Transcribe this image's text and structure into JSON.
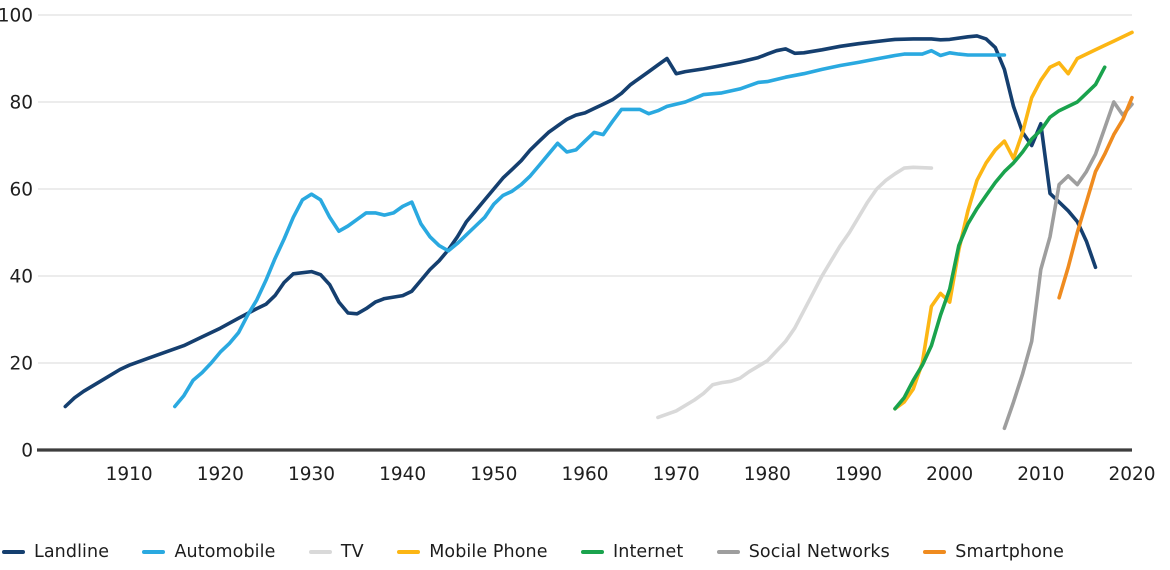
{
  "chart_data": {
    "type": "line",
    "title": "",
    "xlabel": "",
    "ylabel": "",
    "xlim": [
      1900,
      2020
    ],
    "ylim": [
      0,
      100
    ],
    "x_ticks": [
      1910,
      1920,
      1930,
      1940,
      1950,
      1960,
      1970,
      1980,
      1990,
      2000,
      2010,
      2020
    ],
    "y_ticks": [
      0,
      20,
      40,
      60,
      80,
      100
    ],
    "grid": true,
    "legend_position": "bottom",
    "colors": {
      "grid": "#e6e6e6",
      "axis": "#3d3d3d",
      "tick_text": "#1f1f1f"
    },
    "series": [
      {
        "name": "Landline",
        "color": "#153f6f",
        "points": [
          [
            1903,
            10
          ],
          [
            1904,
            12
          ],
          [
            1905,
            13.5
          ],
          [
            1907,
            16
          ],
          [
            1909,
            18.5
          ],
          [
            1910,
            19.5
          ],
          [
            1912,
            21
          ],
          [
            1914,
            22.5
          ],
          [
            1916,
            24
          ],
          [
            1918,
            26
          ],
          [
            1920,
            28
          ],
          [
            1922,
            30.3
          ],
          [
            1924,
            32.5
          ],
          [
            1925,
            33.5
          ],
          [
            1926,
            35.5
          ],
          [
            1927,
            38.5
          ],
          [
            1928,
            40.5
          ],
          [
            1930,
            41
          ],
          [
            1931,
            40.3
          ],
          [
            1932,
            38
          ],
          [
            1933,
            34
          ],
          [
            1934,
            31.5
          ],
          [
            1935,
            31.3
          ],
          [
            1936,
            32.5
          ],
          [
            1937,
            34
          ],
          [
            1938,
            34.8
          ],
          [
            1940,
            35.5
          ],
          [
            1941,
            36.5
          ],
          [
            1942,
            39
          ],
          [
            1943,
            41.5
          ],
          [
            1944,
            43.5
          ],
          [
            1945,
            46
          ],
          [
            1946,
            49
          ],
          [
            1947,
            52.5
          ],
          [
            1948,
            55
          ],
          [
            1949,
            57.5
          ],
          [
            1950,
            60
          ],
          [
            1951,
            62.5
          ],
          [
            1952,
            64.5
          ],
          [
            1953,
            66.5
          ],
          [
            1954,
            69
          ],
          [
            1955,
            71
          ],
          [
            1956,
            73
          ],
          [
            1957,
            74.5
          ],
          [
            1958,
            76
          ],
          [
            1959,
            77
          ],
          [
            1960,
            77.5
          ],
          [
            1961,
            78.5
          ],
          [
            1962,
            79.5
          ],
          [
            1963,
            80.5
          ],
          [
            1964,
            82
          ],
          [
            1965,
            84
          ],
          [
            1966,
            85.5
          ],
          [
            1967,
            87
          ],
          [
            1968,
            88.5
          ],
          [
            1969,
            90
          ],
          [
            1970,
            86.5
          ],
          [
            1971,
            87
          ],
          [
            1973,
            87.6
          ],
          [
            1975,
            88.4
          ],
          [
            1977,
            89.2
          ],
          [
            1979,
            90.2
          ],
          [
            1980,
            91
          ],
          [
            1981,
            91.8
          ],
          [
            1982,
            92.2
          ],
          [
            1983,
            91.2
          ],
          [
            1984,
            91.3
          ],
          [
            1986,
            92
          ],
          [
            1988,
            92.8
          ],
          [
            1990,
            93.4
          ],
          [
            1992,
            93.9
          ],
          [
            1994,
            94.4
          ],
          [
            1996,
            94.5
          ],
          [
            1998,
            94.5
          ],
          [
            1999,
            94.3
          ],
          [
            2000,
            94.4
          ],
          [
            2002,
            95
          ],
          [
            2003,
            95.2
          ],
          [
            2004,
            94.5
          ],
          [
            2005,
            92.5
          ],
          [
            2006,
            87.5
          ],
          [
            2007,
            79
          ],
          [
            2008,
            73
          ],
          [
            2009,
            70
          ],
          [
            2010,
            75
          ],
          [
            2011,
            59
          ],
          [
            2012,
            57
          ],
          [
            2013,
            55
          ],
          [
            2014,
            52.5
          ],
          [
            2015,
            48
          ],
          [
            2016,
            42
          ]
        ]
      },
      {
        "name": "Automobile",
        "color": "#2aa9e0",
        "points": [
          [
            1915,
            10
          ],
          [
            1916,
            12.5
          ],
          [
            1917,
            16
          ],
          [
            1918,
            17.8
          ],
          [
            1919,
            20
          ],
          [
            1920,
            22.5
          ],
          [
            1921,
            24.5
          ],
          [
            1922,
            27
          ],
          [
            1923,
            31
          ],
          [
            1924,
            34.5
          ],
          [
            1925,
            39
          ],
          [
            1926,
            44
          ],
          [
            1927,
            48.5
          ],
          [
            1928,
            53.5
          ],
          [
            1929,
            57.5
          ],
          [
            1930,
            58.8
          ],
          [
            1931,
            57.5
          ],
          [
            1932,
            53.5
          ],
          [
            1933,
            50.3
          ],
          [
            1934,
            51.5
          ],
          [
            1935,
            53
          ],
          [
            1936,
            54.5
          ],
          [
            1937,
            54.5
          ],
          [
            1938,
            54
          ],
          [
            1939,
            54.5
          ],
          [
            1940,
            56
          ],
          [
            1941,
            57
          ],
          [
            1942,
            52
          ],
          [
            1943,
            49
          ],
          [
            1944,
            47
          ],
          [
            1945,
            45.8
          ],
          [
            1946,
            47.5
          ],
          [
            1947,
            49.5
          ],
          [
            1948,
            51.5
          ],
          [
            1949,
            53.5
          ],
          [
            1950,
            56.5
          ],
          [
            1951,
            58.5
          ],
          [
            1952,
            59.5
          ],
          [
            1953,
            61
          ],
          [
            1954,
            63
          ],
          [
            1955,
            65.5
          ],
          [
            1956,
            68
          ],
          [
            1957,
            70.5
          ],
          [
            1958,
            68.5
          ],
          [
            1959,
            69
          ],
          [
            1960,
            71
          ],
          [
            1961,
            73
          ],
          [
            1962,
            72.5
          ],
          [
            1963,
            75.5
          ],
          [
            1964,
            78.3
          ],
          [
            1966,
            78.3
          ],
          [
            1967,
            77.3
          ],
          [
            1968,
            78
          ],
          [
            1969,
            79
          ],
          [
            1971,
            80
          ],
          [
            1973,
            81.7
          ],
          [
            1975,
            82.1
          ],
          [
            1977,
            83
          ],
          [
            1979,
            84.5
          ],
          [
            1980,
            84.7
          ],
          [
            1982,
            85.7
          ],
          [
            1984,
            86.5
          ],
          [
            1986,
            87.5
          ],
          [
            1988,
            88.4
          ],
          [
            1990,
            89.1
          ],
          [
            1992,
            89.9
          ],
          [
            1994,
            90.7
          ],
          [
            1995,
            91
          ],
          [
            1997,
            91
          ],
          [
            1998,
            91.8
          ],
          [
            1999,
            90.7
          ],
          [
            2000,
            91.3
          ],
          [
            2001,
            91
          ],
          [
            2002,
            90.8
          ],
          [
            2006,
            90.8
          ]
        ]
      },
      {
        "name": "TV",
        "color": "#d9d9d9",
        "points": [
          [
            1968,
            7.5
          ],
          [
            1970,
            9
          ],
          [
            1972,
            11.5
          ],
          [
            1973,
            13
          ],
          [
            1974,
            15
          ],
          [
            1975,
            15.5
          ],
          [
            1976,
            15.8
          ],
          [
            1977,
            16.5
          ],
          [
            1978,
            18
          ],
          [
            1980,
            20.5
          ],
          [
            1982,
            25
          ],
          [
            1983,
            28
          ],
          [
            1984,
            32
          ],
          [
            1985,
            36
          ],
          [
            1986,
            40
          ],
          [
            1987,
            43.5
          ],
          [
            1988,
            47
          ],
          [
            1989,
            50
          ],
          [
            1990,
            53.5
          ],
          [
            1991,
            57
          ],
          [
            1992,
            60
          ],
          [
            1993,
            62
          ],
          [
            1994,
            63.5
          ],
          [
            1995,
            64.8
          ],
          [
            1996,
            65
          ],
          [
            1998,
            64.8
          ]
        ]
      },
      {
        "name": "Mobile Phone",
        "color": "#fcb614",
        "points": [
          [
            1994,
            9.5
          ],
          [
            1995,
            11
          ],
          [
            1996,
            14
          ],
          [
            1997,
            20
          ],
          [
            1998,
            33
          ],
          [
            1999,
            36
          ],
          [
            2000,
            34
          ],
          [
            2001,
            46
          ],
          [
            2002,
            55
          ],
          [
            2003,
            62
          ],
          [
            2004,
            66
          ],
          [
            2005,
            69
          ],
          [
            2006,
            71
          ],
          [
            2007,
            67
          ],
          [
            2008,
            73
          ],
          [
            2009,
            81
          ],
          [
            2010,
            85
          ],
          [
            2011,
            88
          ],
          [
            2012,
            89
          ],
          [
            2013,
            86.5
          ],
          [
            2014,
            90
          ],
          [
            2015,
            91
          ],
          [
            2016,
            92
          ],
          [
            2017,
            93
          ],
          [
            2018,
            94
          ],
          [
            2019,
            95
          ],
          [
            2020,
            96
          ]
        ]
      },
      {
        "name": "Internet",
        "color": "#1aa34d",
        "points": [
          [
            1994,
            9.5
          ],
          [
            1995,
            12
          ],
          [
            1996,
            16
          ],
          [
            1997,
            19.5
          ],
          [
            1998,
            24
          ],
          [
            1999,
            31
          ],
          [
            2000,
            37
          ],
          [
            2001,
            47
          ],
          [
            2002,
            52
          ],
          [
            2003,
            55.5
          ],
          [
            2004,
            58.5
          ],
          [
            2005,
            61.5
          ],
          [
            2006,
            64
          ],
          [
            2007,
            66
          ],
          [
            2008,
            68.5
          ],
          [
            2009,
            71.5
          ],
          [
            2010,
            73.5
          ],
          [
            2011,
            76.5
          ],
          [
            2012,
            78
          ],
          [
            2013,
            79
          ],
          [
            2014,
            80
          ],
          [
            2015,
            82
          ],
          [
            2016,
            84
          ],
          [
            2017,
            88
          ]
        ]
      },
      {
        "name": "Social Networks",
        "color": "#9e9e9e",
        "points": [
          [
            2006,
            5
          ],
          [
            2007,
            11
          ],
          [
            2008,
            17.5
          ],
          [
            2009,
            25
          ],
          [
            2010,
            41.5
          ],
          [
            2011,
            49
          ],
          [
            2012,
            61
          ],
          [
            2013,
            63
          ],
          [
            2014,
            61
          ],
          [
            2015,
            64
          ],
          [
            2016,
            68
          ],
          [
            2017,
            74
          ],
          [
            2018,
            80
          ],
          [
            2019,
            77
          ],
          [
            2020,
            79.5
          ]
        ]
      },
      {
        "name": "Smartphone",
        "color": "#ef8b1f",
        "points": [
          [
            2012,
            35
          ],
          [
            2013,
            42
          ],
          [
            2014,
            50
          ],
          [
            2015,
            57
          ],
          [
            2016,
            64
          ],
          [
            2017,
            68
          ],
          [
            2018,
            72.5
          ],
          [
            2019,
            76
          ],
          [
            2020,
            81
          ]
        ]
      }
    ]
  }
}
